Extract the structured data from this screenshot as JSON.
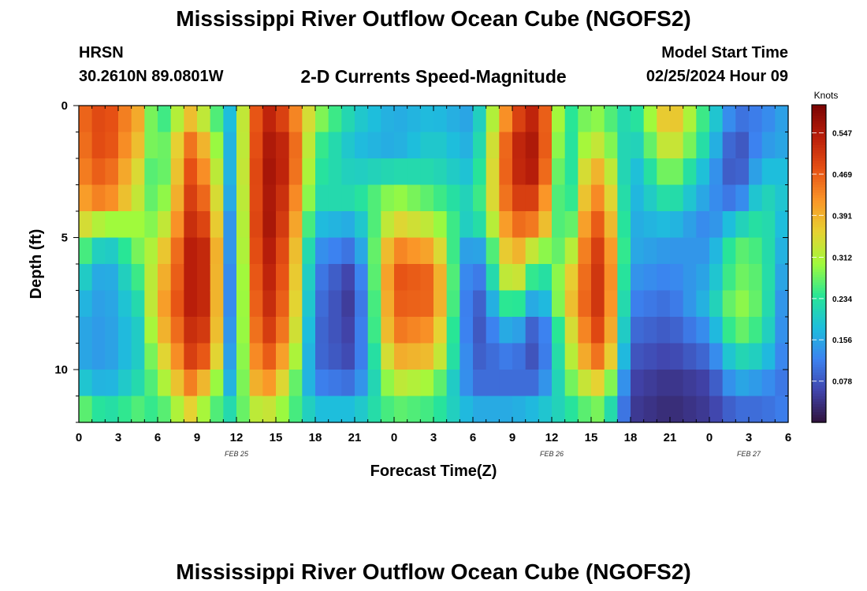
{
  "header": {
    "title": "Mississippi River Outflow Ocean Cube (NGOFS2)",
    "station_name": "HRSN",
    "station_coords": "30.2610N  89.0801W",
    "subtitle": "2-D Currents Speed-Magnitude",
    "model_label": "Model Start Time",
    "model_time": "02/25/2024 Hour 09"
  },
  "footer": {
    "title": "Mississippi River Outflow Ocean Cube (NGOFS2)"
  },
  "chart_data": {
    "type": "heatmap",
    "title": "2-D Currents Speed-Magnitude",
    "xlabel": "Forecast Time(Z)",
    "ylabel": "Depth (ft)",
    "x_hours_range": [
      0,
      54
    ],
    "y_range": [
      0,
      12
    ],
    "x_tick_labels": [
      "0",
      "3",
      "6",
      "9",
      "12",
      "15",
      "18",
      "21",
      "0",
      "3",
      "6",
      "9",
      "12",
      "15",
      "18",
      "21",
      "0",
      "3",
      "6"
    ],
    "y_tick_labels": [
      "0",
      "5",
      "10"
    ],
    "y_tick_values": [
      0,
      5,
      10
    ],
    "date_labels": [
      {
        "text": "FEB 25",
        "hour": 12
      },
      {
        "text": "FEB 26",
        "hour": 36
      },
      {
        "text": "FEB 27",
        "hour": 51
      }
    ],
    "depth_levels": [
      0.5,
      1.5,
      2.5,
      3.5,
      4.5,
      5.5,
      6.5,
      7.5,
      8.5,
      9.5,
      10.5,
      11.5
    ],
    "colorbar": {
      "label": "Knots",
      "min": 0.0,
      "max": 0.6,
      "ticks": [
        0.078,
        0.156,
        0.234,
        0.312,
        0.391,
        0.469,
        0.547
      ],
      "tick_labels": [
        "0.078",
        "0.156",
        "0.234",
        "0.312",
        "0.391",
        "0.469",
        "0.547"
      ]
    },
    "time_profiles_hours": [
      0,
      2,
      4.5,
      6,
      8.5,
      10,
      11.5,
      14,
      16,
      18,
      21,
      24,
      27,
      30,
      33,
      35,
      37,
      39,
      40,
      42,
      45,
      48,
      50,
      52,
      54
    ],
    "speed_profiles_knots": [
      [
        0.45,
        0.44,
        0.43,
        0.4,
        0.36,
        0.28,
        0.22,
        0.18,
        0.16,
        0.16,
        0.2,
        0.28
      ],
      [
        0.5,
        0.5,
        0.48,
        0.45,
        0.3,
        0.18,
        0.14,
        0.14,
        0.14,
        0.14,
        0.16,
        0.22
      ],
      [
        0.4,
        0.38,
        0.35,
        0.33,
        0.3,
        0.28,
        0.25,
        0.22,
        0.2,
        0.2,
        0.22,
        0.26
      ],
      [
        0.22,
        0.23,
        0.22,
        0.24,
        0.28,
        0.33,
        0.36,
        0.38,
        0.36,
        0.32,
        0.28,
        0.24
      ],
      [
        0.38,
        0.45,
        0.48,
        0.5,
        0.52,
        0.54,
        0.54,
        0.54,
        0.52,
        0.5,
        0.44,
        0.36
      ],
      [
        0.3,
        0.36,
        0.4,
        0.44,
        0.48,
        0.52,
        0.52,
        0.52,
        0.5,
        0.46,
        0.36,
        0.28
      ],
      [
        0.18,
        0.17,
        0.17,
        0.16,
        0.14,
        0.14,
        0.13,
        0.13,
        0.14,
        0.15,
        0.17,
        0.22
      ],
      [
        0.55,
        0.56,
        0.57,
        0.57,
        0.58,
        0.57,
        0.56,
        0.55,
        0.53,
        0.5,
        0.45,
        0.35
      ],
      [
        0.48,
        0.52,
        0.52,
        0.5,
        0.48,
        0.46,
        0.45,
        0.44,
        0.42,
        0.38,
        0.32,
        0.28
      ],
      [
        0.3,
        0.26,
        0.24,
        0.22,
        0.18,
        0.14,
        0.12,
        0.11,
        0.1,
        0.1,
        0.12,
        0.18
      ],
      [
        0.2,
        0.18,
        0.2,
        0.22,
        0.16,
        0.1,
        0.05,
        0.04,
        0.05,
        0.06,
        0.1,
        0.18
      ],
      [
        0.16,
        0.16,
        0.22,
        0.3,
        0.36,
        0.44,
        0.48,
        0.47,
        0.45,
        0.4,
        0.33,
        0.27
      ],
      [
        0.18,
        0.2,
        0.22,
        0.26,
        0.32,
        0.4,
        0.46,
        0.46,
        0.42,
        0.38,
        0.3,
        0.25
      ],
      [
        0.15,
        0.16,
        0.18,
        0.2,
        0.18,
        0.1,
        0.06,
        0.05,
        0.06,
        0.08,
        0.1,
        0.16
      ],
      [
        0.48,
        0.52,
        0.52,
        0.5,
        0.46,
        0.42,
        0.38,
        0.28,
        0.18,
        0.12,
        0.1,
        0.16
      ],
      [
        0.55,
        0.56,
        0.55,
        0.5,
        0.44,
        0.3,
        0.2,
        0.12,
        0.06,
        0.06,
        0.1,
        0.18
      ],
      [
        0.22,
        0.2,
        0.18,
        0.18,
        0.2,
        0.26,
        0.32,
        0.34,
        0.3,
        0.28,
        0.25,
        0.22
      ],
      [
        0.3,
        0.34,
        0.4,
        0.44,
        0.48,
        0.5,
        0.5,
        0.5,
        0.48,
        0.44,
        0.36,
        0.28
      ],
      [
        0.28,
        0.32,
        0.38,
        0.42,
        0.46,
        0.5,
        0.52,
        0.52,
        0.5,
        0.46,
        0.36,
        0.28
      ],
      [
        0.2,
        0.18,
        0.16,
        0.16,
        0.16,
        0.16,
        0.14,
        0.12,
        0.1,
        0.08,
        0.06,
        0.05
      ],
      [
        0.4,
        0.36,
        0.3,
        0.24,
        0.18,
        0.14,
        0.12,
        0.1,
        0.08,
        0.06,
        0.04,
        0.03
      ],
      [
        0.22,
        0.2,
        0.16,
        0.14,
        0.12,
        0.14,
        0.16,
        0.18,
        0.14,
        0.1,
        0.06,
        0.05
      ],
      [
        0.1,
        0.06,
        0.06,
        0.1,
        0.2,
        0.27,
        0.28,
        0.3,
        0.28,
        0.22,
        0.16,
        0.1
      ],
      [
        0.12,
        0.14,
        0.18,
        0.22,
        0.24,
        0.25,
        0.26,
        0.26,
        0.24,
        0.2,
        0.14,
        0.1
      ],
      [
        0.16,
        0.16,
        0.18,
        0.18,
        0.16,
        0.14,
        0.12,
        0.1,
        0.1,
        0.1,
        0.1,
        0.12
      ]
    ]
  }
}
